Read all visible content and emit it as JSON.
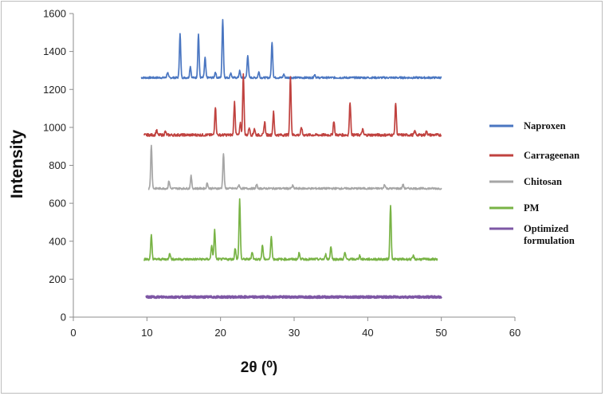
{
  "chart_data": {
    "type": "line",
    "title": "",
    "xlabel": "2θ (⁰)",
    "ylabel": "Intensity",
    "xlim": [
      0,
      60
    ],
    "ylim": [
      0,
      1600
    ],
    "x_ticks": [
      0,
      10,
      20,
      30,
      40,
      50,
      60
    ],
    "y_ticks": [
      0,
      200,
      400,
      600,
      800,
      1000,
      1200,
      1400,
      1600
    ],
    "grid": false,
    "legend": "right",
    "series": [
      {
        "name": "Naproxen",
        "color": "#4a76c1",
        "baseline": 1262,
        "x_range": [
          9.2,
          50
        ],
        "noise": 5,
        "peaks": [
          [
            12.8,
            28
          ],
          [
            14.5,
            230
          ],
          [
            15.9,
            60
          ],
          [
            17.0,
            230
          ],
          [
            17.9,
            105
          ],
          [
            19.3,
            30
          ],
          [
            20.3,
            310
          ],
          [
            21.4,
            25
          ],
          [
            22.6,
            35
          ],
          [
            23.7,
            120
          ],
          [
            25.2,
            30
          ],
          [
            27.0,
            190
          ],
          [
            28.6,
            18
          ],
          [
            32.8,
            18
          ]
        ]
      },
      {
        "name": "Carrageenan",
        "color": "#c0423f",
        "baseline": 960,
        "x_range": [
          9.6,
          50
        ],
        "noise": 7,
        "peaks": [
          [
            11.3,
            25
          ],
          [
            12.5,
            18
          ],
          [
            19.3,
            150
          ],
          [
            21.9,
            175
          ],
          [
            22.7,
            60
          ],
          [
            23.1,
            325
          ],
          [
            23.9,
            40
          ],
          [
            24.6,
            35
          ],
          [
            26.0,
            70
          ],
          [
            27.2,
            120
          ],
          [
            29.5,
            310
          ],
          [
            31.0,
            40
          ],
          [
            35.4,
            75
          ],
          [
            37.6,
            175
          ],
          [
            39.3,
            30
          ],
          [
            43.8,
            170
          ],
          [
            46.4,
            20
          ],
          [
            48.0,
            22
          ]
        ]
      },
      {
        "name": "Chitosan",
        "color": "#a6a6a6",
        "baseline": 678,
        "x_range": [
          10.2,
          50
        ],
        "noise": 5,
        "peaks": [
          [
            10.6,
            230
          ],
          [
            13.0,
            40
          ],
          [
            16.0,
            65
          ],
          [
            18.2,
            30
          ],
          [
            20.4,
            185
          ],
          [
            22.5,
            20
          ],
          [
            24.9,
            20
          ],
          [
            29.8,
            15
          ],
          [
            42.3,
            22
          ],
          [
            44.8,
            20
          ]
        ]
      },
      {
        "name": "PM",
        "color": "#78b345",
        "baseline": 305,
        "x_range": [
          9.6,
          49.5
        ],
        "noise": 6,
        "peaks": [
          [
            10.6,
            125
          ],
          [
            13.1,
            35
          ],
          [
            18.8,
            75
          ],
          [
            19.2,
            155
          ],
          [
            22.0,
            60
          ],
          [
            22.6,
            315
          ],
          [
            24.3,
            40
          ],
          [
            25.7,
            75
          ],
          [
            26.9,
            125
          ],
          [
            30.7,
            35
          ],
          [
            34.3,
            25
          ],
          [
            35.0,
            70
          ],
          [
            36.9,
            35
          ],
          [
            38.9,
            20
          ],
          [
            43.1,
            285
          ],
          [
            46.2,
            18
          ]
        ]
      },
      {
        "name": "Optimized formulation",
        "color": "#7e57a5",
        "baseline": 106,
        "x_range": [
          9.9,
          50
        ],
        "noise": 4,
        "peaks": []
      }
    ]
  }
}
